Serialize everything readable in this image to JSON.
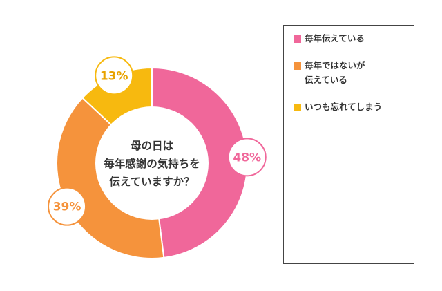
{
  "chart_data": {
    "type": "pie",
    "variant": "donut",
    "title": "母の日は\n毎年感謝の気持ちを\n伝えていますか？",
    "categories": [
      "毎年伝えている",
      "毎年ではないが\n伝えている",
      "いつも忘れてしまう"
    ],
    "values": [
      48,
      39,
      13
    ],
    "value_labels": [
      "48%",
      "39%",
      "13%"
    ],
    "colors": [
      "#f0679a",
      "#f5933c",
      "#f7b90f"
    ],
    "legend_position": "right"
  }
}
